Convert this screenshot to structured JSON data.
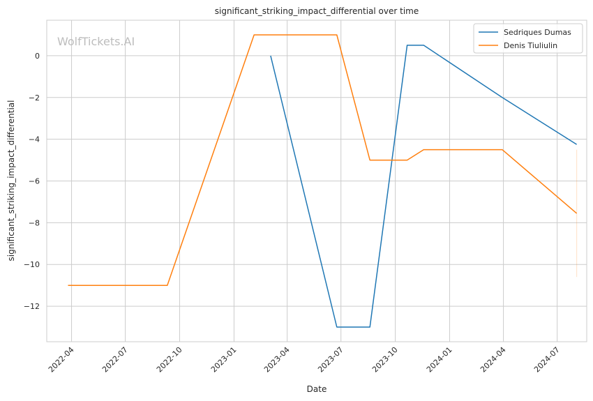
{
  "chart_data": {
    "type": "line",
    "title": "significant_striking_impact_differential over time",
    "xlabel": "Date",
    "ylabel": "significant_striking_impact_differential",
    "x_range": [
      "2022-02-18",
      "2024-08-20"
    ],
    "ylim": [
      -13.7,
      1.7
    ],
    "x_ticks": [
      {
        "date": "2022-04-01",
        "label": "2022-04"
      },
      {
        "date": "2022-07-01",
        "label": "2022-07"
      },
      {
        "date": "2022-10-01",
        "label": "2022-10"
      },
      {
        "date": "2023-01-01",
        "label": "2023-01"
      },
      {
        "date": "2023-04-01",
        "label": "2023-04"
      },
      {
        "date": "2023-07-01",
        "label": "2023-07"
      },
      {
        "date": "2023-10-01",
        "label": "2023-10"
      },
      {
        "date": "2024-01-01",
        "label": "2024-01"
      },
      {
        "date": "2024-04-01",
        "label": "2024-04"
      },
      {
        "date": "2024-07-01",
        "label": "2024-07"
      }
    ],
    "y_ticks": [
      0,
      -2,
      -4,
      -6,
      -8,
      -10,
      -12
    ],
    "grid": true,
    "legend_position": "top-right",
    "watermark": "WolfTickets.AI",
    "series": [
      {
        "name": "Sedriques Dumas",
        "color": "#1f77b4",
        "points": [
          {
            "x": "2023-03-04",
            "y": 0
          },
          {
            "x": "2023-06-24",
            "y": -13
          },
          {
            "x": "2023-08-19",
            "y": -13
          },
          {
            "x": "2023-10-21",
            "y": 0.5
          },
          {
            "x": "2023-11-18",
            "y": 0.5
          },
          {
            "x": "2024-03-30",
            "y": -2
          },
          {
            "x": "2024-08-03",
            "y": -4.25
          }
        ]
      },
      {
        "name": "Denis Tiuliulin",
        "color": "#ff7f0e",
        "points": [
          {
            "x": "2022-03-26",
            "y": -11
          },
          {
            "x": "2022-09-10",
            "y": -11
          },
          {
            "x": "2023-02-04",
            "y": 1
          },
          {
            "x": "2023-06-24",
            "y": 1
          },
          {
            "x": "2023-08-19",
            "y": -5
          },
          {
            "x": "2023-10-21",
            "y": -5
          },
          {
            "x": "2023-11-18",
            "y": -4.5
          },
          {
            "x": "2024-03-30",
            "y": -4.5
          },
          {
            "x": "2024-08-03",
            "y": -7.55
          }
        ]
      }
    ],
    "shaded_band": {
      "color": "#ff7f0e",
      "x": "2024-08-03",
      "y_min": -10.6,
      "y_max": -4.5
    }
  }
}
